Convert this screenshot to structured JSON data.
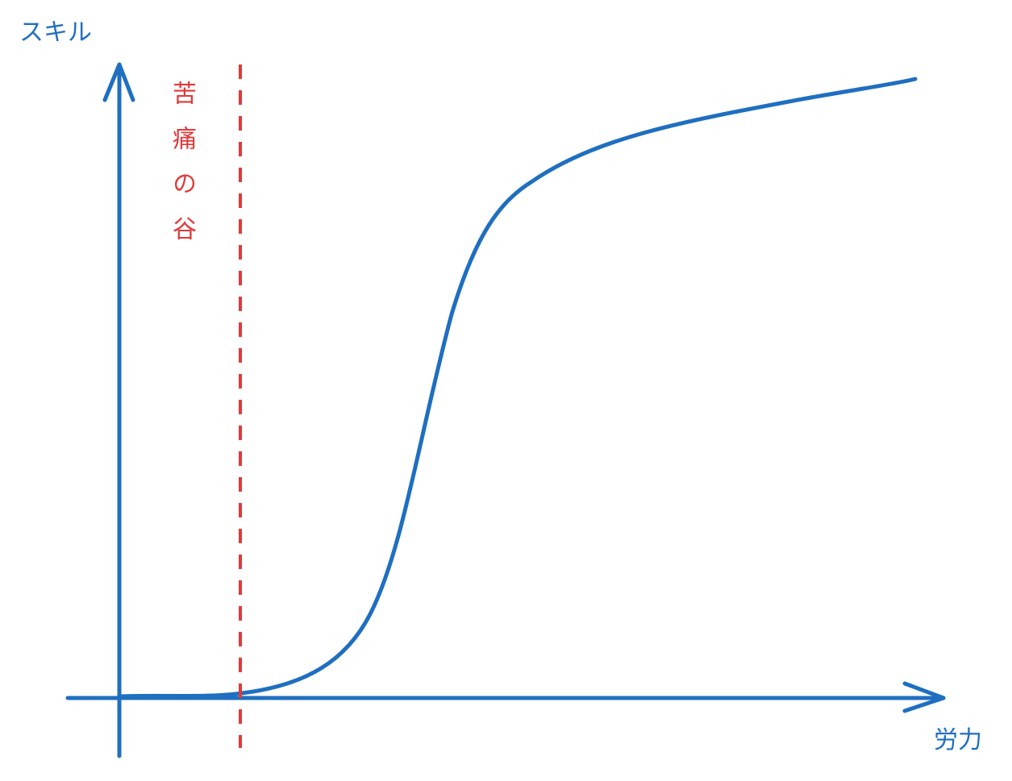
{
  "y_axis_label": "スキル",
  "x_axis_label": "労力",
  "valley_label": "苦痛の谷"
}
